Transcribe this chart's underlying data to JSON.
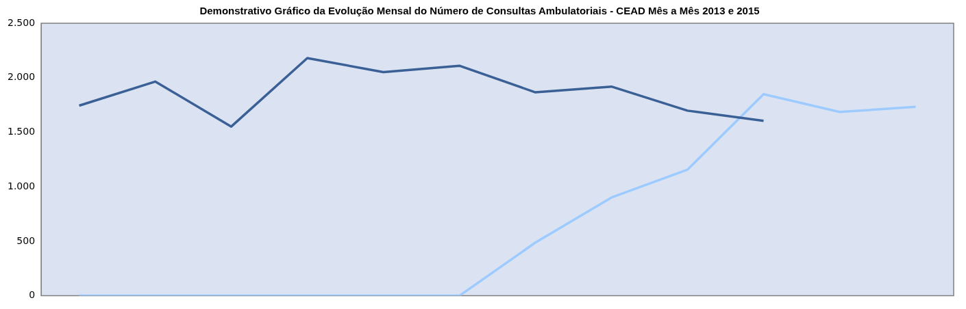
{
  "chart_data": {
    "type": "line",
    "title": "Demonstrativo Gráfico da Evolução Mensal do Número de Consultas Ambulatoriais - CEAD Mês a Mês 2013 e 2015",
    "categories": [
      null,
      null,
      null,
      null,
      null,
      null,
      null,
      null,
      null,
      null,
      null,
      null
    ],
    "series": [
      {
        "color": "#3a6095",
        "values": [
          1744,
          1965,
          1552,
          2180,
          2052,
          2110,
          1866,
          1919,
          1698,
          1605,
          null,
          null
        ]
      },
      {
        "color": "#9ecbff",
        "values": [
          0,
          0,
          0,
          0,
          0,
          0,
          488,
          901,
          1157,
          1849,
          1686,
          1733
        ]
      }
    ],
    "ylim": [
      0,
      2500
    ],
    "yticks": [
      {
        "value": 0,
        "label": "0"
      },
      {
        "value": 500,
        "label": "500"
      },
      {
        "value": 1000,
        "label": "1.000"
      },
      {
        "value": 1500,
        "label": "1.500"
      },
      {
        "value": 2000,
        "label": "2.000"
      },
      {
        "value": 2500,
        "label": "2.500"
      }
    ],
    "grid": false,
    "legend": false,
    "marker": "none",
    "line_style": "solid",
    "tick_labels": "y"
  }
}
